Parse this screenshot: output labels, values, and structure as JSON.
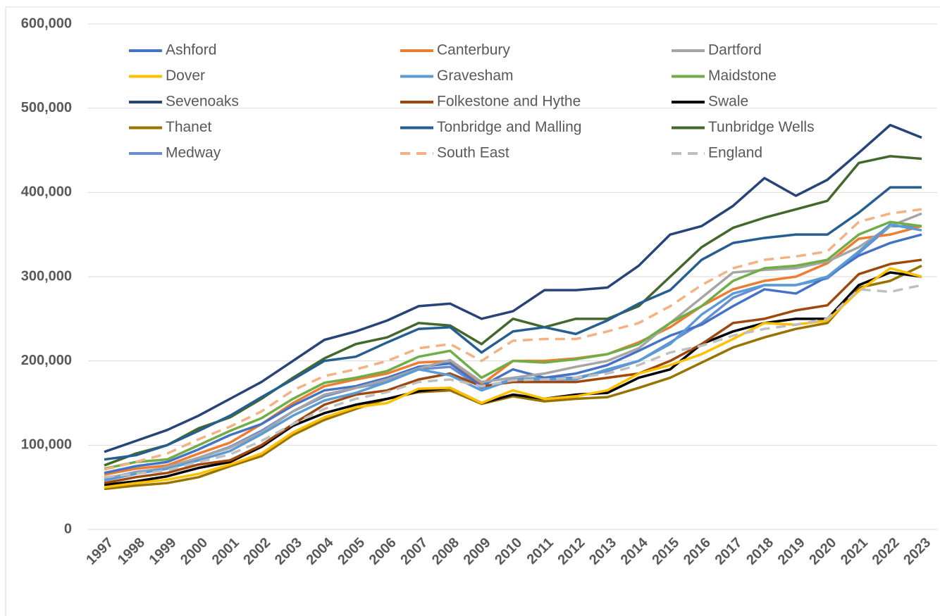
{
  "chart_data": {
    "type": "line",
    "categories": [
      "1997",
      "1998",
      "1999",
      "2000",
      "2001",
      "2002",
      "2003",
      "2004",
      "2005",
      "2006",
      "2007",
      "2008",
      "2009",
      "2010",
      "2011",
      "2012",
      "2013",
      "2014",
      "2015",
      "2016",
      "2017",
      "2018",
      "2019",
      "2020",
      "2021",
      "2022",
      "2023"
    ],
    "ylim": [
      0,
      600000
    ],
    "yticks": [
      0,
      {
        "value": 100000,
        "label": "100,000"
      },
      {
        "value": 200000,
        "label": "200,000"
      },
      {
        "value": 300000,
        "label": "300,000"
      },
      {
        "value": 400000,
        "label": "400,000"
      },
      {
        "value": 500000,
        "label": "500,000"
      },
      {
        "value": 600000,
        "label": "600,000"
      }
    ],
    "grid": true,
    "legend": "top",
    "series": [
      {
        "name": "Ashford",
        "color": "#4472c4",
        "values": [
          67000,
          75000,
          80000,
          95000,
          112000,
          125000,
          147000,
          165000,
          170000,
          180000,
          193000,
          197000,
          170000,
          190000,
          180000,
          185000,
          195000,
          212000,
          230000,
          243000,
          265000,
          285000,
          280000,
          300000,
          325000,
          340000,
          350000
        ]
      },
      {
        "name": "Canterbury",
        "color": "#ed7d31",
        "values": [
          65000,
          72000,
          76000,
          90000,
          103000,
          125000,
          150000,
          170000,
          178000,
          185000,
          198000,
          200000,
          172000,
          200000,
          200000,
          203000,
          208000,
          222000,
          240000,
          265000,
          285000,
          295000,
          300000,
          316000,
          345000,
          350000,
          360000
        ]
      },
      {
        "name": "Dartford",
        "color": "#a5a5a5",
        "values": [
          60000,
          67000,
          74000,
          85000,
          97000,
          115000,
          140000,
          160000,
          168000,
          178000,
          191000,
          201000,
          175000,
          180000,
          185000,
          193000,
          200000,
          215000,
          245000,
          275000,
          305000,
          308000,
          310000,
          318000,
          335000,
          360000,
          375000
        ]
      },
      {
        "name": "Dover",
        "color": "#ffc000",
        "values": [
          50000,
          55000,
          59000,
          66000,
          77000,
          90000,
          115000,
          133000,
          145000,
          150000,
          167000,
          168000,
          150000,
          165000,
          155000,
          158000,
          165000,
          185000,
          195000,
          208000,
          226000,
          245000,
          243000,
          248000,
          283000,
          310000,
          300000
        ]
      },
      {
        "name": "Gravesham",
        "color": "#5b9bd5",
        "values": [
          58000,
          66000,
          72000,
          82000,
          93000,
          113000,
          135000,
          153000,
          162000,
          175000,
          190000,
          183000,
          165000,
          178000,
          178000,
          178000,
          190000,
          200000,
          220000,
          255000,
          280000,
          290000,
          290000,
          300000,
          330000,
          362000,
          355000
        ]
      },
      {
        "name": "Maidstone",
        "color": "#70ad47",
        "values": [
          72000,
          80000,
          83000,
          100000,
          117000,
          132000,
          155000,
          174000,
          180000,
          188000,
          205000,
          212000,
          180000,
          200000,
          198000,
          202000,
          208000,
          220000,
          245000,
          265000,
          295000,
          310000,
          313000,
          320000,
          350000,
          365000,
          360000
        ]
      },
      {
        "name": "Sevenoaks",
        "color": "#264478",
        "values": [
          92000,
          105000,
          118000,
          135000,
          155000,
          175000,
          200000,
          225000,
          235000,
          248000,
          265000,
          268000,
          250000,
          259000,
          284000,
          284000,
          287000,
          313000,
          350000,
          360000,
          384000,
          417000,
          396000,
          415000,
          447000,
          480000,
          465000
        ]
      },
      {
        "name": "Folkestone and Hythe",
        "color": "#9e480e",
        "values": [
          55000,
          62000,
          67000,
          77000,
          82000,
          100000,
          125000,
          148000,
          160000,
          165000,
          178000,
          185000,
          170000,
          175000,
          175000,
          175000,
          180000,
          185000,
          200000,
          220000,
          245000,
          250000,
          260000,
          266000,
          303000,
          315000,
          320000
        ]
      },
      {
        "name": "Swale",
        "color": "#000000",
        "values": [
          53000,
          57000,
          63000,
          73000,
          80000,
          98000,
          123000,
          138000,
          148000,
          155000,
          164000,
          168000,
          150000,
          160000,
          155000,
          160000,
          162000,
          180000,
          190000,
          220000,
          235000,
          245000,
          250000,
          250000,
          290000,
          305000,
          300000
        ]
      },
      {
        "name": "Thanet",
        "color": "#997300",
        "values": [
          48000,
          52000,
          55000,
          62000,
          75000,
          87000,
          112000,
          130000,
          143000,
          155000,
          163000,
          165000,
          149000,
          158000,
          152000,
          155000,
          157000,
          168000,
          180000,
          198000,
          216000,
          228000,
          238000,
          245000,
          287000,
          295000,
          313000
        ]
      },
      {
        "name": "Tonbridge and Malling",
        "color": "#255e91",
        "values": [
          83000,
          88000,
          100000,
          117000,
          135000,
          157000,
          178000,
          200000,
          205000,
          222000,
          238000,
          240000,
          210000,
          235000,
          240000,
          232000,
          248000,
          268000,
          284000,
          320000,
          340000,
          346000,
          350000,
          350000,
          376000,
          406000,
          406000
        ]
      },
      {
        "name": "Tunbridge Wells",
        "color": "#43682b",
        "values": [
          76000,
          90000,
          100000,
          120000,
          133000,
          155000,
          180000,
          203000,
          220000,
          228000,
          245000,
          242000,
          220000,
          250000,
          240000,
          250000,
          250000,
          265000,
          300000,
          335000,
          358000,
          370000,
          380000,
          390000,
          435000,
          443000,
          440000
        ]
      },
      {
        "name": "Medway",
        "color": "#698ed0",
        "values": [
          60000,
          68000,
          73000,
          85000,
          98000,
          117000,
          140000,
          158000,
          168000,
          175000,
          190000,
          193000,
          168000,
          178000,
          180000,
          180000,
          188000,
          200000,
          222000,
          245000,
          275000,
          290000,
          290000,
          298000,
          328000,
          360000,
          360000
        ]
      },
      {
        "name": "South East",
        "color": "#f4b183",
        "dashed": true,
        "values": [
          71000,
          80000,
          90000,
          107000,
          122000,
          140000,
          165000,
          182000,
          190000,
          200000,
          215000,
          220000,
          200000,
          224000,
          226000,
          226000,
          235000,
          245000,
          265000,
          290000,
          310000,
          320000,
          324000,
          330000,
          365000,
          375000,
          380000
        ]
      },
      {
        "name": "England",
        "color": "#bfbfbf",
        "dashed": true,
        "values": [
          62000,
          66000,
          70000,
          80000,
          89000,
          105000,
          125000,
          143000,
          155000,
          163000,
          175000,
          178000,
          170000,
          177000,
          178000,
          180000,
          185000,
          195000,
          210000,
          218000,
          230000,
          238000,
          243000,
          250000,
          285000,
          282000,
          290000
        ]
      }
    ]
  }
}
